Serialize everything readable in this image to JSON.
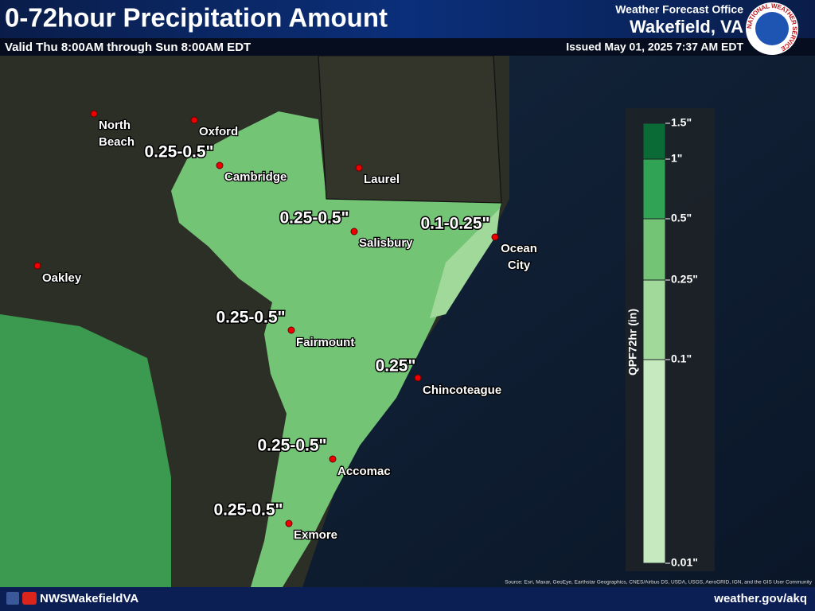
{
  "header": {
    "title": "0-72hour Precipitation Amount",
    "subtitle": "Valid Thu 8:00AM through Sun 8:00AM EDT",
    "office_line": "Weather Forecast Office",
    "office": "Wakefield, VA",
    "issued": "Issued May 01, 2025 7:37 AM EDT",
    "logo_text": "NATIONAL WEATHER SERVICE"
  },
  "cities": [
    {
      "label": [
        "North",
        "Beach"
      ]
    },
    {
      "label": [
        "Oxford"
      ]
    },
    {
      "label": [
        "Cambridge"
      ]
    },
    {
      "label": [
        "Laurel"
      ]
    },
    {
      "label": [
        "Salisbury"
      ]
    },
    {
      "label": [
        "Ocean",
        "City"
      ]
    },
    {
      "label": [
        "Oakley"
      ]
    },
    {
      "label": [
        "Fairmount"
      ]
    },
    {
      "label": [
        "Chincoteague"
      ]
    },
    {
      "label": [
        "Accomac"
      ]
    },
    {
      "label": [
        "Exmore"
      ]
    }
  ],
  "area_labels": [
    "0.25-0.5\"",
    "0.25-0.5\"",
    "0.1-0.25\"",
    "0.25-0.5\"",
    "0.25\"",
    "0.25-0.5\"",
    "0.25-0.5\""
  ],
  "legend": {
    "title": "QPF72hr (in)",
    "ticks": [
      "1.5\"",
      "1\"",
      "0.5\"",
      "0.25\"",
      "0.1\"",
      "0.01\""
    ],
    "colors": [
      "#0b6b36",
      "#31a354",
      "#74c476",
      "#a1d99b",
      "#c7e9c0"
    ]
  },
  "attribution": "Source: Esri, Maxar, GeoEye, Earthstar Geographics, CNES/Airbus DS, USDA, USGS, AeroGRID, IGN, and the GIS User Community",
  "footer": {
    "social": "NWSWakefieldVA",
    "url": "weather.gov/akq"
  }
}
